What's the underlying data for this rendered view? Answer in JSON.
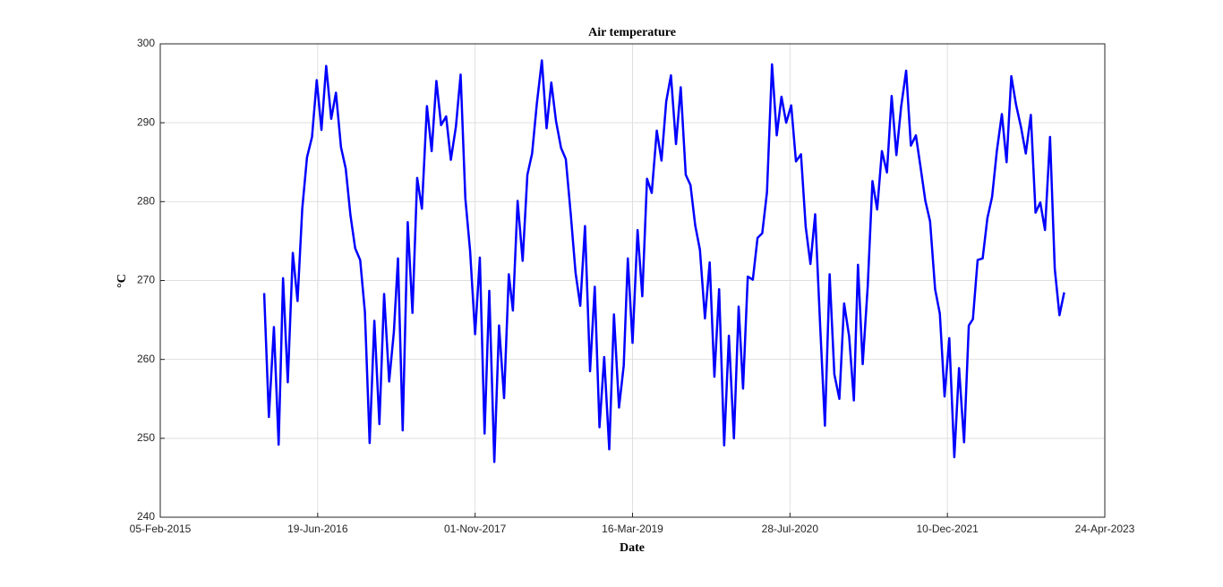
{
  "chart_data": {
    "type": "line",
    "title": "Air temperature",
    "x_label": "Date",
    "y_label": "°C",
    "grid": true,
    "xlim": [
      "2015-02-05",
      "2023-04-24"
    ],
    "xticks": [
      {
        "value": "2015-02-05",
        "label": "05-Feb-2015"
      },
      {
        "value": "2016-06-19",
        "label": "19-Jun-2016"
      },
      {
        "value": "2017-11-01",
        "label": "01-Nov-2017"
      },
      {
        "value": "2019-03-16",
        "label": "16-Mar-2019"
      },
      {
        "value": "2020-07-28",
        "label": "28-Jul-2020"
      },
      {
        "value": "2021-12-10",
        "label": "10-Dec-2021"
      },
      {
        "value": "2023-04-24",
        "label": "24-Apr-2023"
      }
    ],
    "ylim": [
      240,
      300
    ],
    "yticks": [
      240,
      250,
      260,
      270,
      280,
      290,
      300
    ],
    "x": [
      "2016-01-01",
      "2016-01-16",
      "2016-02-01",
      "2016-02-16",
      "2016-03-01",
      "2016-03-16",
      "2016-04-01",
      "2016-04-16",
      "2016-05-01",
      "2016-05-16",
      "2016-06-01",
      "2016-06-16",
      "2016-07-01",
      "2016-07-16",
      "2016-08-01",
      "2016-08-16",
      "2016-09-01",
      "2016-09-16",
      "2016-10-01",
      "2016-10-16",
      "2016-11-01",
      "2016-11-16",
      "2016-12-01",
      "2016-12-16",
      "2017-01-01",
      "2017-01-16",
      "2017-02-01",
      "2017-02-16",
      "2017-03-01",
      "2017-03-16",
      "2017-04-01",
      "2017-04-16",
      "2017-05-01",
      "2017-05-16",
      "2017-06-01",
      "2017-06-16",
      "2017-07-01",
      "2017-07-16",
      "2017-08-01",
      "2017-08-16",
      "2017-09-01",
      "2017-09-16",
      "2017-10-01",
      "2017-10-16",
      "2017-11-01",
      "2017-11-16",
      "2017-12-01",
      "2017-12-16",
      "2018-01-01",
      "2018-01-16",
      "2018-02-01",
      "2018-02-16",
      "2018-03-01",
      "2018-03-16",
      "2018-04-01",
      "2018-04-16",
      "2018-05-01",
      "2018-05-16",
      "2018-06-01",
      "2018-06-16",
      "2018-07-01",
      "2018-07-16",
      "2018-08-01",
      "2018-08-16",
      "2018-09-01",
      "2018-09-16",
      "2018-10-01",
      "2018-10-16",
      "2018-11-01",
      "2018-11-16",
      "2018-12-01",
      "2018-12-16",
      "2019-01-01",
      "2019-01-16",
      "2019-02-01",
      "2019-02-16",
      "2019-03-01",
      "2019-03-16",
      "2019-04-01",
      "2019-04-16",
      "2019-05-01",
      "2019-05-16",
      "2019-06-01",
      "2019-06-16",
      "2019-07-01",
      "2019-07-16",
      "2019-08-01",
      "2019-08-16",
      "2019-09-01",
      "2019-09-16",
      "2019-10-01",
      "2019-10-16",
      "2019-11-01",
      "2019-11-16",
      "2019-12-01",
      "2019-12-16",
      "2020-01-01",
      "2020-01-16",
      "2020-02-01",
      "2020-02-16",
      "2020-03-01",
      "2020-03-16",
      "2020-04-01",
      "2020-04-16",
      "2020-05-01",
      "2020-05-16",
      "2020-06-01",
      "2020-06-16",
      "2020-07-01",
      "2020-07-16",
      "2020-08-01",
      "2020-08-16",
      "2020-09-01",
      "2020-09-16",
      "2020-10-01",
      "2020-10-16",
      "2020-11-01",
      "2020-11-16",
      "2020-12-01",
      "2020-12-16",
      "2021-01-01",
      "2021-01-16",
      "2021-02-01",
      "2021-02-16",
      "2021-03-01",
      "2021-03-16",
      "2021-04-01",
      "2021-04-16",
      "2021-05-01",
      "2021-05-16",
      "2021-06-01",
      "2021-06-16",
      "2021-07-01",
      "2021-07-16",
      "2021-08-01",
      "2021-08-16",
      "2021-09-01",
      "2021-09-16",
      "2021-10-01",
      "2021-10-16",
      "2021-11-01",
      "2021-11-16",
      "2021-12-01",
      "2021-12-16",
      "2022-01-01",
      "2022-01-16",
      "2022-02-01",
      "2022-02-16",
      "2022-03-01",
      "2022-03-16",
      "2022-04-01",
      "2022-04-16",
      "2022-05-01",
      "2022-05-16",
      "2022-06-01",
      "2022-06-16",
      "2022-07-01",
      "2022-07-16",
      "2022-08-01",
      "2022-08-16",
      "2022-09-01",
      "2022-09-16",
      "2022-10-01",
      "2022-10-16",
      "2022-11-01",
      "2022-11-16",
      "2022-12-01",
      "2022-12-16"
    ],
    "series": [
      {
        "color": "#0000ff",
        "values": [
          268.4,
          252.7,
          264.1,
          249.2,
          270.3,
          257.1,
          273.5,
          267.4,
          279.1,
          285.6,
          288.2,
          295.4,
          289.1,
          297.2,
          290.5,
          293.8,
          286.9,
          284.2,
          278.3,
          274.1,
          272.6,
          266.0,
          249.4,
          264.9,
          251.8,
          268.3,
          257.2,
          263.5,
          272.8,
          251.0,
          277.4,
          265.9,
          283.0,
          279.1,
          292.1,
          286.4,
          295.3,
          289.7,
          290.8,
          285.3,
          289.5,
          296.1,
          280.4,
          273.8,
          263.2,
          272.9,
          250.6,
          268.7,
          247.0,
          264.3,
          255.1,
          270.8,
          266.2,
          280.1,
          272.5,
          283.4,
          286.1,
          292.4,
          297.9,
          289.3,
          295.1,
          290.2,
          286.8,
          285.4,
          278.3,
          271.0,
          266.8,
          276.9,
          258.5,
          269.2,
          251.4,
          260.3,
          248.6,
          265.7,
          253.9,
          259.2,
          272.8,
          262.1,
          276.4,
          268.0,
          282.9,
          281.1,
          289.0,
          285.2,
          292.7,
          296.0,
          287.3,
          294.5,
          283.4,
          282.1,
          277.0,
          273.9,
          265.2,
          272.3,
          257.8,
          268.9,
          249.1,
          263.0,
          250.0,
          266.7,
          256.3,
          270.5,
          270.1,
          275.4,
          276.0,
          281.2,
          297.4,
          288.4,
          293.3,
          290.0,
          292.2,
          285.1,
          286.0,
          276.8,
          272.1,
          278.4,
          264.2,
          251.6,
          270.8,
          258.1,
          255.0,
          267.1,
          262.9,
          254.8,
          272.0,
          259.4,
          269.3,
          282.6,
          279.0,
          286.4,
          283.7,
          293.4,
          285.9,
          292.0,
          296.6,
          287.1,
          288.4,
          284.3,
          280.1,
          277.5,
          268.9,
          265.8,
          255.3,
          262.7,
          247.6,
          258.9,
          249.5,
          264.3,
          265.1,
          272.6,
          272.8,
          277.9,
          280.6,
          286.4,
          291.1,
          285.0,
          295.9,
          292.3,
          289.4,
          286.1,
          291.0,
          278.6,
          279.9,
          276.4,
          288.2,
          271.5,
          265.6,
          268.5
        ]
      }
    ]
  }
}
